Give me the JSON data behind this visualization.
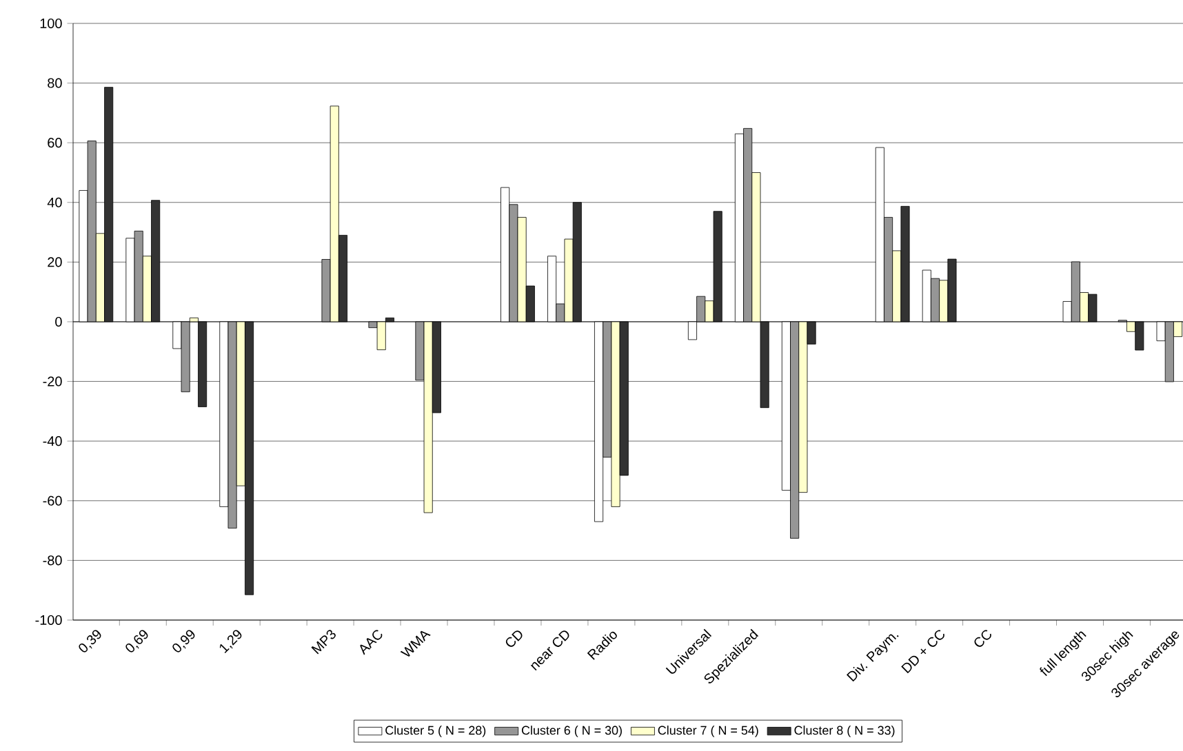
{
  "chart_data": {
    "type": "bar",
    "categories": [
      "0,39",
      "0,69",
      "0,99",
      "1,29",
      null,
      "MP3",
      "AAC",
      "WMA",
      null,
      "CD",
      "near CD",
      "Radio",
      null,
      "Universal",
      "Spezialized",
      null,
      null,
      "Div. Paym.",
      "DD + CC",
      "CC",
      null,
      "full length",
      "30sec high",
      "30sec average"
    ],
    "series": [
      {
        "name": "Cluster 5 ( N = 28)",
        "color": "#ffffff",
        "values": [
          44,
          28,
          -9,
          -62,
          null,
          null,
          null,
          null,
          null,
          45,
          22,
          -67,
          null,
          -6,
          63,
          -56.5,
          null,
          58.4,
          17.3,
          null,
          null,
          6.8,
          null,
          -6.4
        ]
      },
      {
        "name": "Cluster 6 ( N = 30)",
        "color": "#969696",
        "values": [
          60.6,
          30.4,
          -23.5,
          -69.2,
          null,
          20.9,
          -2,
          -19.6,
          null,
          39.3,
          6,
          -45.4,
          null,
          8.5,
          64.8,
          -72.6,
          null,
          35,
          14.5,
          null,
          null,
          20.1,
          0.5,
          -20.1
        ]
      },
      {
        "name": "Cluster 7 ( N = 54)",
        "color": "#ffffcc",
        "values": [
          29.6,
          22,
          1.3,
          -55,
          null,
          72.3,
          -9.4,
          -64,
          null,
          35,
          27.7,
          -62,
          null,
          7,
          50,
          -57.2,
          null,
          23.8,
          13.9,
          null,
          null,
          9.8,
          -3.3,
          -5
        ]
      },
      {
        "name": "Cluster 8 ( N = 33)",
        "color": "#333333",
        "values": [
          78.6,
          40.7,
          -28.5,
          -91.5,
          null,
          29,
          1.3,
          -30.5,
          null,
          12,
          40,
          -51.5,
          null,
          37,
          -28.8,
          -7.5,
          null,
          38.7,
          21,
          null,
          null,
          9.2,
          -9.5,
          null
        ]
      }
    ],
    "ylim": [
      -100,
      100
    ],
    "yticks": [
      -100,
      -80,
      -60,
      -40,
      -20,
      0,
      20,
      40,
      60,
      80,
      100
    ],
    "grid": "y",
    "legend": "bottom"
  }
}
